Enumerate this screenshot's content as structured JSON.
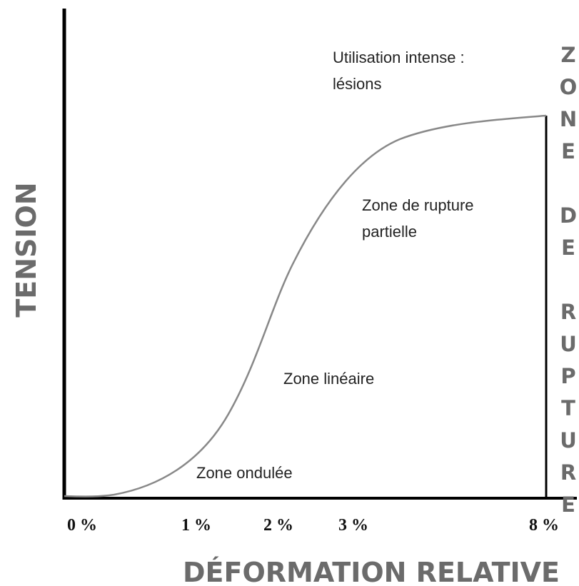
{
  "axes": {
    "y_label": "TENSION",
    "x_label": "DÉFORMATION RELATIVE",
    "x_ticks": [
      "0 %",
      "1 %",
      "2 %",
      "3 %",
      "8 %"
    ]
  },
  "zones": {
    "toe": "Zone ondulée",
    "linear": "Zone linéaire",
    "partial": [
      "Zone de rupture",
      "partielle"
    ],
    "intense": [
      "Utilisation intense :",
      "lésions"
    ]
  },
  "rupture": "ZONE DE RUPTURE"
}
